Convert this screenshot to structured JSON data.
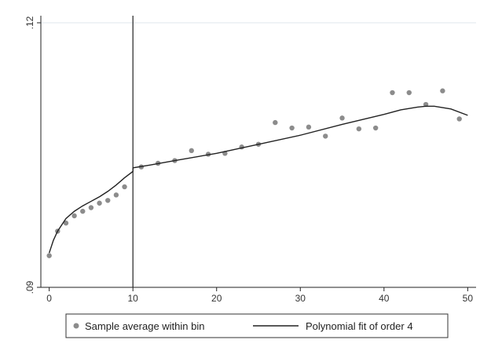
{
  "chart_data": {
    "type": "scatter",
    "title": "",
    "xlabel": "",
    "ylabel": "",
    "xlim": [
      -1,
      51
    ],
    "ylim": [
      0.09,
      0.12
    ],
    "x_ticks": [
      0,
      10,
      20,
      30,
      40,
      50
    ],
    "x_tick_labels": [
      "0",
      "10",
      "20",
      "30",
      "40",
      "50"
    ],
    "y_ticks": [
      0.09,
      0.12
    ],
    "y_tick_labels": [
      ".09",
      ".12"
    ],
    "vertical_line_x": 10,
    "grid": false,
    "legend_position": "bottom",
    "series": [
      {
        "name": "Sample average within bin",
        "kind": "markers",
        "color": "#8c8c8c",
        "x": [
          0,
          1,
          2,
          3,
          4,
          5,
          6,
          7,
          8,
          9,
          11,
          13,
          15,
          17,
          19,
          21,
          23,
          25,
          27,
          29,
          31,
          33,
          35,
          37,
          39,
          41,
          43,
          45,
          47,
          49
        ],
        "y": [
          0.0935,
          0.0962,
          0.0971,
          0.0979,
          0.0984,
          0.0988,
          0.0993,
          0.0996,
          0.1002,
          0.1011,
          0.1033,
          0.1037,
          0.104,
          0.1051,
          0.1047,
          0.1048,
          0.1055,
          0.1058,
          0.1082,
          0.1076,
          0.1077,
          0.1067,
          0.1087,
          0.1075,
          0.1076,
          0.1115,
          0.1115,
          0.1102,
          0.1117,
          0.1086
        ]
      },
      {
        "name": "Polynomial fit of order 4",
        "kind": "line",
        "color": "#222222",
        "x": [
          0,
          0.5,
          1,
          2,
          3,
          4,
          5,
          6,
          7,
          8,
          9,
          10,
          10.01,
          12,
          15,
          20,
          25,
          30,
          35,
          40,
          42,
          44,
          45,
          46,
          48,
          50
        ],
        "y": [
          0.0938,
          0.0952,
          0.0962,
          0.0976,
          0.0984,
          0.099,
          0.0995,
          0.1,
          0.1006,
          0.1013,
          0.1021,
          0.1028,
          0.1032,
          0.1035,
          0.104,
          0.1048,
          0.1058,
          0.1068,
          0.108,
          0.1091,
          0.1096,
          0.1099,
          0.11,
          0.11,
          0.1097,
          0.109
        ]
      }
    ],
    "legend": [
      {
        "label": "Sample average within bin",
        "symbol": "marker"
      },
      {
        "label": "Polynomial fit of order 4",
        "symbol": "line"
      }
    ]
  }
}
